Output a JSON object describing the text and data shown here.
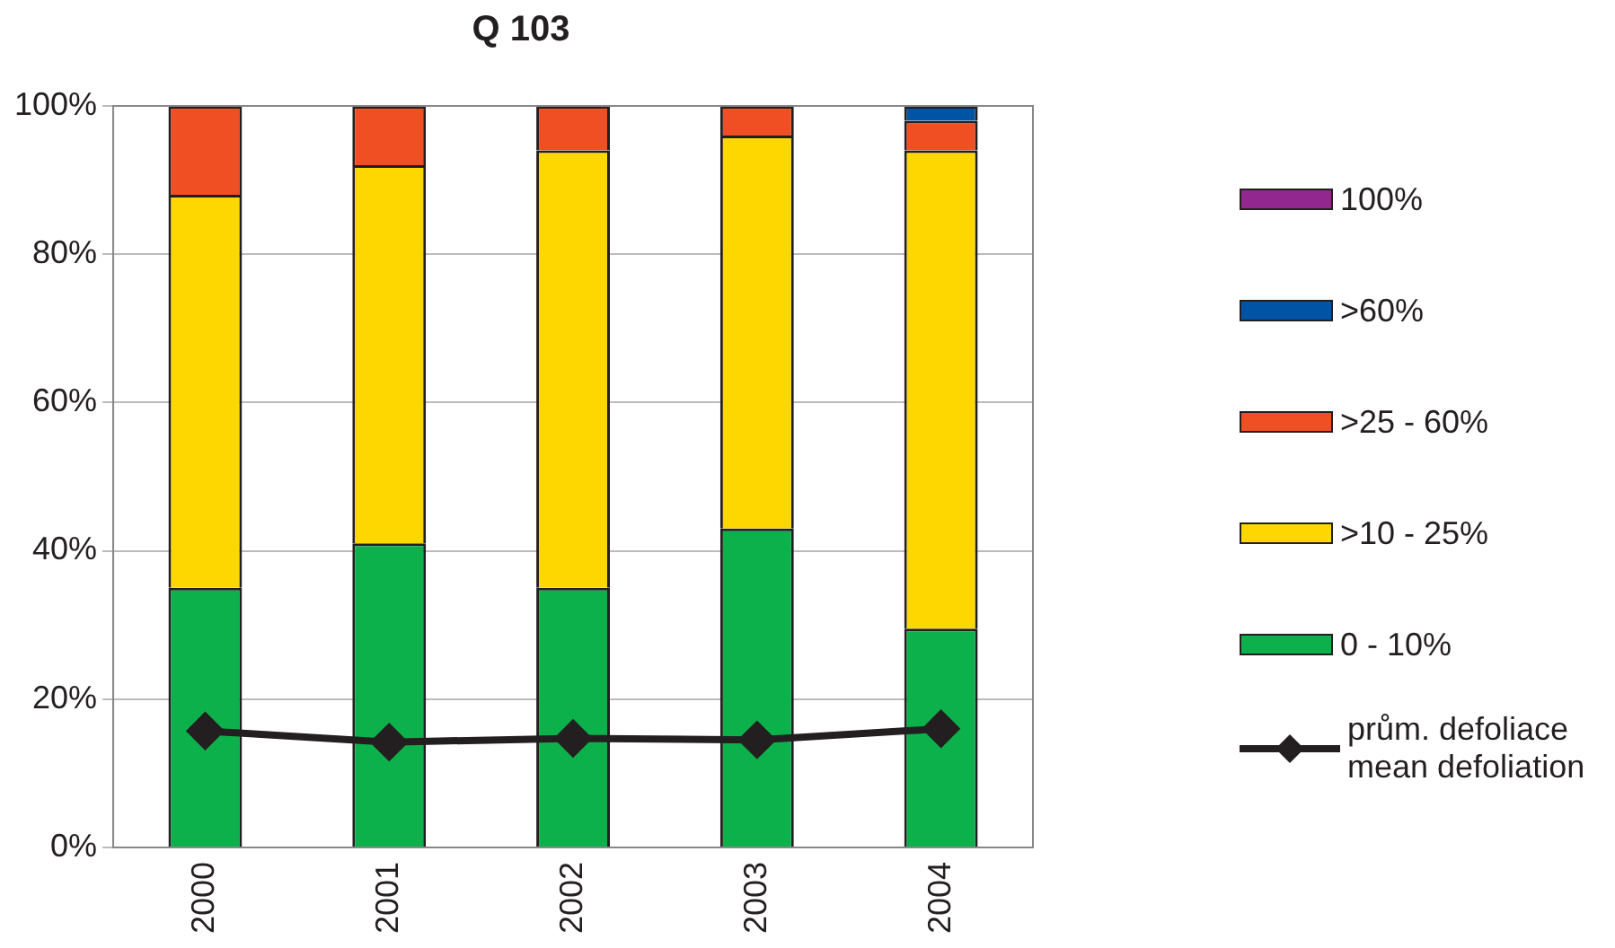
{
  "chart_data": {
    "type": "bar",
    "title": "Q 103",
    "categories": [
      "2000",
      "2001",
      "2002",
      "2003",
      "2004"
    ],
    "stacked": true,
    "series": [
      {
        "name": "0 - 10%",
        "color": "#0db14b",
        "values": [
          35,
          41,
          35,
          43,
          29.5
        ]
      },
      {
        "name": ">10 - 25%",
        "color": "#ffd700",
        "values": [
          53,
          51,
          59,
          53,
          64.5
        ]
      },
      {
        "name": ">25 - 60%",
        "color": "#f04e23",
        "values": [
          12,
          8,
          6,
          4,
          4
        ]
      },
      {
        "name": ">60%",
        "color": "#0054a6",
        "values": [
          0,
          0,
          0,
          0,
          2
        ]
      },
      {
        "name": "100%",
        "color": "#92278f",
        "values": [
          0,
          0,
          0,
          0,
          0
        ]
      },
      {
        "name": "prům. defoliace\nmean defoliation",
        "type": "line",
        "color": "#231f20",
        "values": [
          15.7,
          14.2,
          14.7,
          14.5,
          16
        ],
        "marker": "diamond"
      }
    ],
    "ylim": [
      0,
      100
    ],
    "yticks": [
      {
        "value": 0,
        "label": "0%"
      },
      {
        "value": 20,
        "label": "20%"
      },
      {
        "value": 40,
        "label": "40%"
      },
      {
        "value": 60,
        "label": "60%"
      },
      {
        "value": 80,
        "label": "80%"
      },
      {
        "value": 100,
        "label": "100%"
      }
    ],
    "grid": "y",
    "legend": "right"
  }
}
